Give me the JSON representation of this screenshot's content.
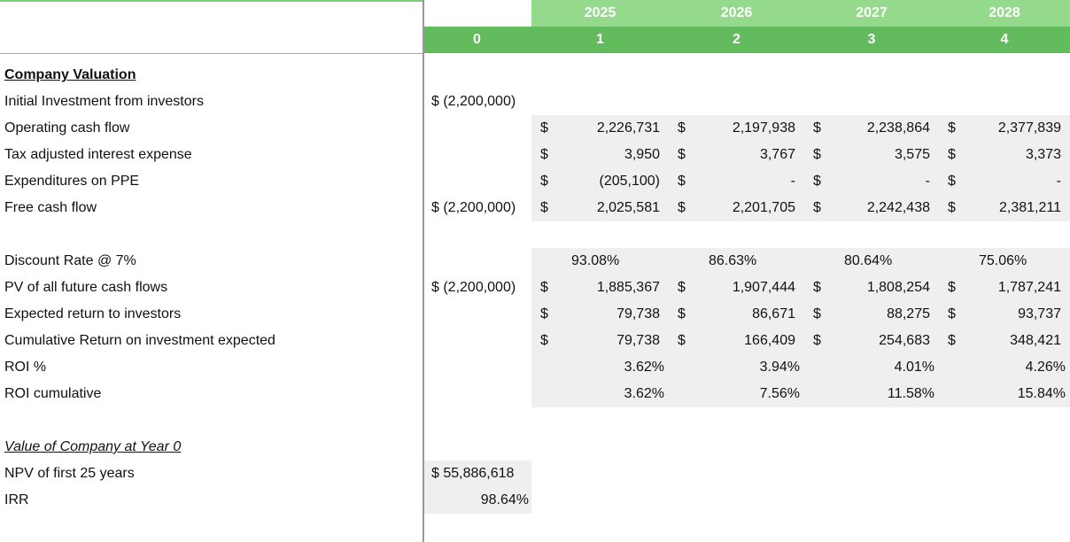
{
  "header": {
    "years": [
      "2025",
      "2026",
      "2027",
      "2028"
    ],
    "periods": [
      "0",
      "1",
      "2",
      "3",
      "4"
    ]
  },
  "company_valuation": {
    "title": "Company Valuation",
    "rows": [
      {
        "label": "Initial Investment from investors",
        "year0": "$ (2,200,000)"
      },
      {
        "label": "Operating cash flow",
        "cells": [
          {
            "currency": "$",
            "value": "2,226,731"
          },
          {
            "currency": "$",
            "value": "2,197,938"
          },
          {
            "currency": "$",
            "value": "2,238,864"
          },
          {
            "currency": "$",
            "value": "2,377,839"
          }
        ]
      },
      {
        "label": "Tax adjusted interest expense",
        "cells": [
          {
            "currency": "$",
            "value": "3,950"
          },
          {
            "currency": "$",
            "value": "3,767"
          },
          {
            "currency": "$",
            "value": "3,575"
          },
          {
            "currency": "$",
            "value": "3,373"
          }
        ]
      },
      {
        "label": "Expenditures on PPE",
        "cells": [
          {
            "currency": "$",
            "value": "(205,100)"
          },
          {
            "currency": "$",
            "value": "-"
          },
          {
            "currency": "$",
            "value": "-"
          },
          {
            "currency": "$",
            "value": "-"
          }
        ]
      },
      {
        "label": "Free cash flow",
        "year0": "$ (2,200,000)",
        "cells": [
          {
            "currency": "$",
            "value": "2,025,581"
          },
          {
            "currency": "$",
            "value": "2,201,705"
          },
          {
            "currency": "$",
            "value": "2,242,438"
          },
          {
            "currency": "$",
            "value": "2,381,211"
          }
        ]
      }
    ]
  },
  "discounting": {
    "rows": [
      {
        "label": "Discount Rate @ 7%",
        "cells": [
          "93.08%",
          "86.63%",
          "80.64%",
          "75.06%"
        ]
      },
      {
        "label": "PV of all future cash flows",
        "year0": "$ (2,200,000)",
        "cells": [
          {
            "currency": "$",
            "value": "1,885,367"
          },
          {
            "currency": "$",
            "value": "1,907,444"
          },
          {
            "currency": "$",
            "value": "1,808,254"
          },
          {
            "currency": "$",
            "value": "1,787,241"
          }
        ]
      },
      {
        "label": "Expected return to investors",
        "cells": [
          {
            "currency": "$",
            "value": "79,738"
          },
          {
            "currency": "$",
            "value": "86,671"
          },
          {
            "currency": "$",
            "value": "88,275"
          },
          {
            "currency": "$",
            "value": "93,737"
          }
        ]
      },
      {
        "label": "Cumulative Return on investment expected",
        "cells": [
          {
            "currency": "$",
            "value": "79,738"
          },
          {
            "currency": "$",
            "value": "166,409"
          },
          {
            "currency": "$",
            "value": "254,683"
          },
          {
            "currency": "$",
            "value": "348,421"
          }
        ]
      },
      {
        "label": "ROI %",
        "cells": [
          "3.62%",
          "3.94%",
          "4.01%",
          "4.26%"
        ]
      },
      {
        "label": "ROI cumulative",
        "cells": [
          "3.62%",
          "7.56%",
          "11.58%",
          "15.84%"
        ]
      }
    ]
  },
  "value_at_year0": {
    "title": "Value of Company at Year 0",
    "rows": [
      {
        "label": "NPV of first 25 years",
        "year0": "$ 55,886,618"
      },
      {
        "label": "IRR",
        "year0": "98.64%"
      }
    ]
  }
}
